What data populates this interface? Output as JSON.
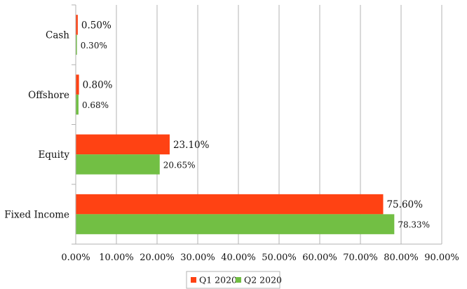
{
  "chart_data": {
    "type": "bar",
    "orientation": "horizontal",
    "categories": [
      "Cash",
      "Offshore",
      "Equity",
      "Fixed Income"
    ],
    "series": [
      {
        "name": "Q1 2020",
        "color": "#ff4213",
        "values": [
          0.5,
          0.8,
          23.1,
          75.6
        ],
        "labels": [
          "0.50%",
          "0.80%",
          "23.10%",
          "75.60%"
        ]
      },
      {
        "name": "Q2 2020",
        "color": "#72bf44",
        "values": [
          0.3,
          0.68,
          20.65,
          78.33
        ],
        "labels": [
          "0.30%",
          "0.68%",
          "20.65%",
          "78.33%"
        ]
      }
    ],
    "xlim": [
      0,
      90
    ],
    "xticks": [
      0,
      10,
      20,
      30,
      40,
      50,
      60,
      70,
      80,
      90
    ],
    "xtick_labels": [
      "0.00%",
      "10.00%",
      "20.00%",
      "30.00%",
      "40.00%",
      "50.00%",
      "60.00%",
      "70.00%",
      "80.00%",
      "90.00%"
    ],
    "grid": "vertical",
    "legend_position": "bottom"
  }
}
